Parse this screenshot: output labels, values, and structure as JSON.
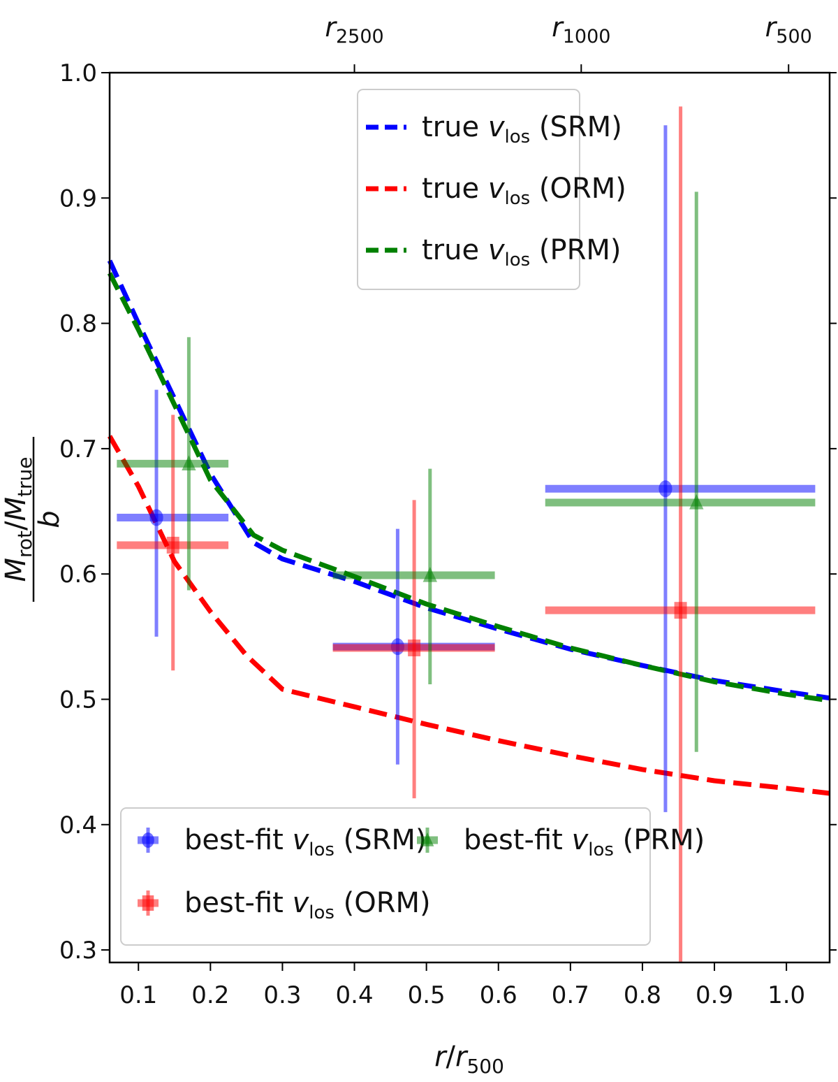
{
  "chart_data": {
    "type": "scatter",
    "xlabel": "r/r_500",
    "ylabel": "M_rot/M_true / b",
    "xlim": [
      0.06,
      1.06
    ],
    "ylim": [
      0.29,
      1.0
    ],
    "x_ticks": [
      0.1,
      0.2,
      0.3,
      0.4,
      0.5,
      0.6,
      0.7,
      0.8,
      0.9,
      1.0
    ],
    "x_tick_labels": [
      "0.1",
      "0.2",
      "0.3",
      "0.4",
      "0.5",
      "0.6",
      "0.7",
      "0.8",
      "0.9",
      "1.0"
    ],
    "y_ticks": [
      0.3,
      0.4,
      0.5,
      0.6,
      0.7,
      0.8,
      0.9,
      1.0
    ],
    "y_tick_labels": [
      "0.3",
      "0.4",
      "0.5",
      "0.6",
      "0.7",
      "0.8",
      "0.9",
      "1.0"
    ],
    "top_axis": {
      "ticks": [
        {
          "x": 0.4,
          "base": "r",
          "sub": "2500"
        },
        {
          "x": 0.715,
          "base": "r",
          "sub": "1000"
        },
        {
          "x": 1.003,
          "base": "r",
          "sub": "500"
        }
      ]
    },
    "grid": false,
    "lines": [
      {
        "name": "true v_los (SRM)",
        "color": "#0000ff",
        "style": "dashed",
        "x": [
          0.06,
          0.1,
          0.15,
          0.2,
          0.26,
          0.3,
          0.4,
          0.5,
          0.6,
          0.7,
          0.8,
          0.9,
          1.0,
          1.06
        ],
        "y": [
          0.85,
          0.8,
          0.74,
          0.68,
          0.625,
          0.612,
          0.594,
          0.573,
          0.556,
          0.54,
          0.527,
          0.515,
          0.506,
          0.501
        ]
      },
      {
        "name": "true v_los (ORM)",
        "color": "#ff0000",
        "style": "dashed",
        "x": [
          0.06,
          0.1,
          0.15,
          0.2,
          0.25,
          0.3,
          0.4,
          0.5,
          0.6,
          0.7,
          0.8,
          0.9,
          1.0,
          1.06
        ],
        "y": [
          0.71,
          0.67,
          0.61,
          0.57,
          0.535,
          0.508,
          0.494,
          0.48,
          0.467,
          0.455,
          0.444,
          0.435,
          0.429,
          0.425
        ]
      },
      {
        "name": "true v_los (PRM)",
        "color": "#008000",
        "style": "dashed",
        "x": [
          0.06,
          0.1,
          0.15,
          0.2,
          0.26,
          0.3,
          0.4,
          0.5,
          0.6,
          0.7,
          0.8,
          0.9,
          1.0,
          1.06
        ],
        "y": [
          0.84,
          0.795,
          0.735,
          0.675,
          0.631,
          0.619,
          0.598,
          0.576,
          0.558,
          0.541,
          0.527,
          0.514,
          0.504,
          0.499
        ]
      }
    ],
    "points": [
      {
        "name": "best-fit v_los (SRM)",
        "color": "#0000ff",
        "marker": "circle",
        "data": [
          {
            "x": 0.125,
            "y": 0.645,
            "xerr": [
              0.07,
              0.225
            ],
            "yerr": [
              0.55,
              0.747
            ]
          },
          {
            "x": 0.46,
            "y": 0.542,
            "xerr": [
              0.37,
              0.595
            ],
            "yerr": [
              0.448,
              0.636
            ]
          },
          {
            "x": 0.832,
            "y": 0.668,
            "xerr": [
              0.665,
              1.04
            ],
            "yerr": [
              0.41,
              0.958
            ]
          }
        ]
      },
      {
        "name": "best-fit v_los (ORM)",
        "color": "#ff0000",
        "marker": "square",
        "data": [
          {
            "x": 0.148,
            "y": 0.623,
            "xerr": [
              0.07,
              0.225
            ],
            "yerr": [
              0.523,
              0.727
            ]
          },
          {
            "x": 0.483,
            "y": 0.541,
            "xerr": [
              0.37,
              0.595
            ],
            "yerr": [
              0.421,
              0.659
            ]
          },
          {
            "x": 0.853,
            "y": 0.571,
            "xerr": [
              0.665,
              1.04
            ],
            "yerr": [
              0.29,
              0.973
            ]
          }
        ]
      },
      {
        "name": "best-fit v_los (PRM)",
        "color": "#008000",
        "marker": "triangle",
        "data": [
          {
            "x": 0.17,
            "y": 0.688,
            "xerr": [
              0.07,
              0.225
            ],
            "yerr": [
              0.587,
              0.789
            ]
          },
          {
            "x": 0.505,
            "y": 0.599,
            "xerr": [
              0.37,
              0.595
            ],
            "yerr": [
              0.512,
              0.684
            ]
          },
          {
            "x": 0.875,
            "y": 0.657,
            "xerr": [
              0.665,
              1.04
            ],
            "yerr": [
              0.458,
              0.905
            ]
          }
        ]
      }
    ],
    "legend_lines": {
      "placement": "upper-center",
      "entries": [
        {
          "prefix": "true ",
          "var": "v",
          "sub": "los",
          "suffix": " (SRM)",
          "color": "#0000ff"
        },
        {
          "prefix": "true ",
          "var": "v",
          "sub": "los",
          "suffix": " (ORM)",
          "color": "#ff0000"
        },
        {
          "prefix": "true ",
          "var": "v",
          "sub": "los",
          "suffix": " (PRM)",
          "color": "#008000"
        }
      ]
    },
    "legend_points": {
      "placement": "lower-left",
      "entries": [
        {
          "prefix": "best-fit ",
          "var": "v",
          "sub": "los",
          "suffix": " (SRM)",
          "color": "#0000ff",
          "marker": "circle"
        },
        {
          "prefix": "best-fit ",
          "var": "v",
          "sub": "los",
          "suffix": " (PRM)",
          "color": "#008000",
          "marker": "triangle"
        },
        {
          "prefix": "best-fit ",
          "var": "v",
          "sub": "los",
          "suffix": " (ORM)",
          "color": "#ff0000",
          "marker": "square"
        }
      ]
    }
  }
}
